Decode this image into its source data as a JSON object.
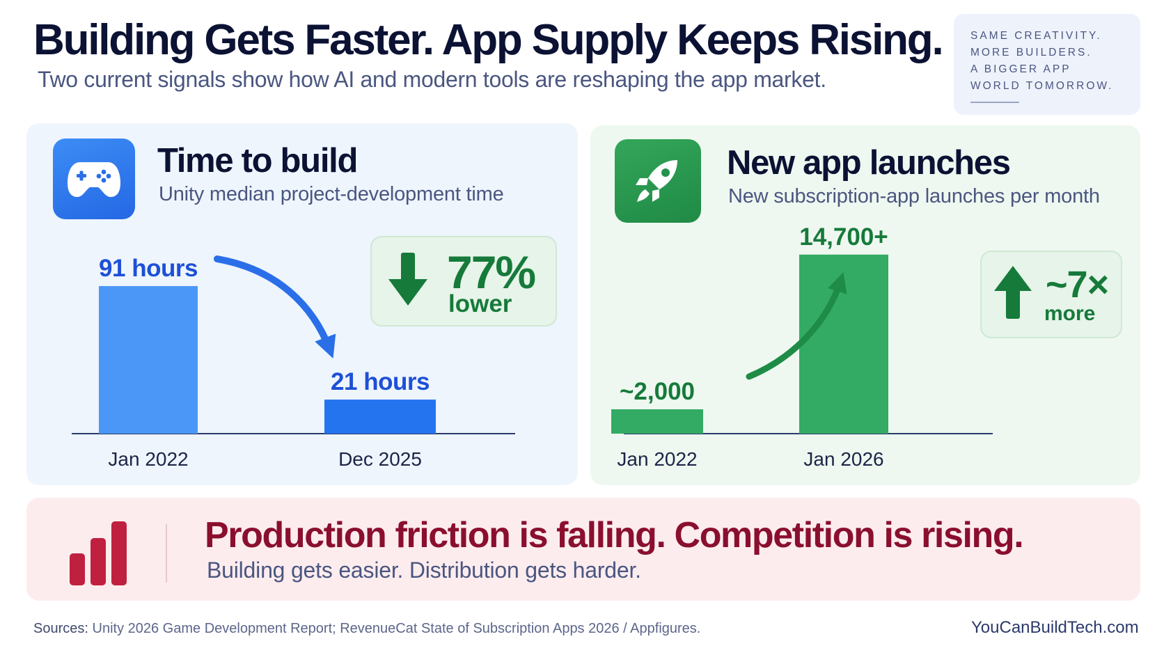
{
  "header": {
    "title": "Building Gets Faster. App Supply Keeps Rising.",
    "subtitle": "Two current signals show how AI and modern tools are reshaping the app market.",
    "tagline_lines": [
      "SAME CREATIVITY.",
      "MORE BUILDERS.",
      "A BIGGER APP",
      "WORLD TOMORROW."
    ]
  },
  "left_panel": {
    "icon": "game-controller-icon",
    "title": "Time to build",
    "subtitle": "Unity median project-development time",
    "stat": {
      "value": "77%",
      "label": "lower",
      "direction": "down"
    }
  },
  "right_panel": {
    "icon": "rocket-icon",
    "title": "New app launches",
    "subtitle": "New subscription-app launches per month",
    "stat": {
      "value": "~7×",
      "label": "more",
      "direction": "up"
    }
  },
  "chart_data": [
    {
      "type": "bar",
      "title": "Time to build",
      "categories": [
        "Jan 2022",
        "Dec 2025"
      ],
      "values": [
        91,
        21
      ],
      "data_labels": [
        "91 hours",
        "21 hours"
      ],
      "units": "hours",
      "colors": [
        "#4b97f7",
        "#2474f0"
      ],
      "label_color": "#1e50d6",
      "ylim": [
        0,
        100
      ],
      "grid": false
    },
    {
      "type": "bar",
      "title": "New app launches",
      "categories": [
        "Jan 2022",
        "Jan 2026"
      ],
      "values": [
        2000,
        14700
      ],
      "data_labels": [
        "~2,000",
        "14,700+"
      ],
      "colors": [
        "#33ab64",
        "#33ab64"
      ],
      "label_color": "#167a3a",
      "ylim": [
        0,
        16000
      ],
      "grid": false
    }
  ],
  "banner": {
    "icon": "bar-chart-icon",
    "headline": "Production friction is falling. Competition is rising.",
    "subline": "Building gets easier. Distribution gets harder."
  },
  "footer": {
    "sources_label": "Sources:",
    "sources_text": "Unity 2026 Game Development Report; RevenueCat State of Subscription Apps 2026 / Appfigures.",
    "site": "YouCanBuildTech.com"
  },
  "colors": {
    "blue_panel": "#eef5fd",
    "green_panel": "#eef8f0",
    "banner_bg": "#fdecee",
    "banner_text": "#8a0f2e",
    "accent_green": "#167a3a"
  }
}
